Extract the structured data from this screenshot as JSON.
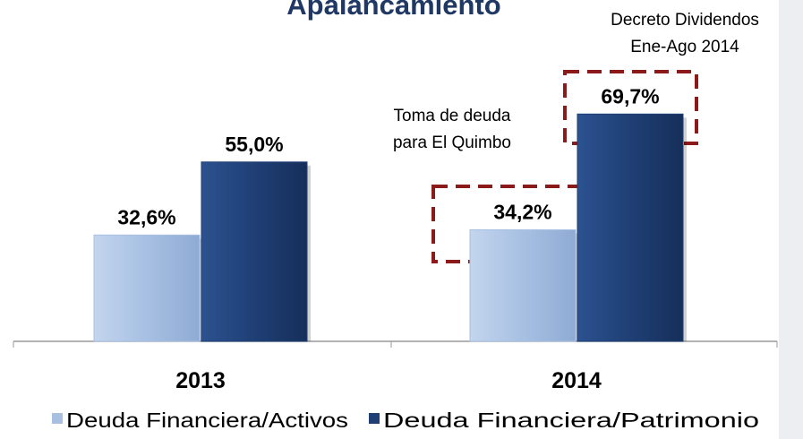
{
  "chart_data": {
    "type": "bar",
    "title": "Apalancamiento",
    "categories": [
      "2013",
      "2014"
    ],
    "series": [
      {
        "name": "Deuda Financiera/Activos",
        "color": "#a7c0e2",
        "values": [
          32.6,
          34.2
        ],
        "value_labels": [
          "32,6%",
          "34,2%"
        ]
      },
      {
        "name": "Deuda Financiera/Patrimonio",
        "color": "#1f3f75",
        "values": [
          55.0,
          69.7
        ],
        "value_labels": [
          "55,0%",
          "69,7%"
        ]
      }
    ],
    "annotations": [
      {
        "lines": [
          "Toma de deuda",
          "para El Quimbo"
        ]
      },
      {
        "lines": [
          "Decreto Dividendos",
          "Ene-Ago 2014"
        ]
      }
    ],
    "legend": "bottom"
  }
}
